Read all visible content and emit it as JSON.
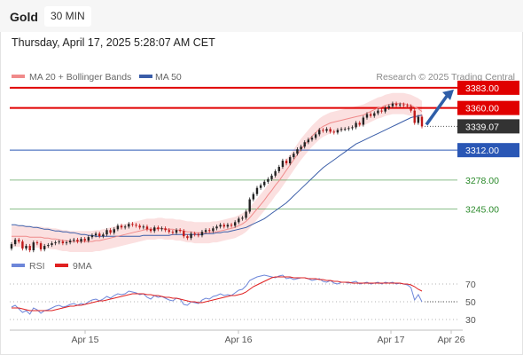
{
  "header": {
    "symbol": "Gold",
    "timeframe": "30 MIN",
    "datetime": "Thursday, April 17, 2025 5:28:07 AM CET"
  },
  "legend": {
    "ma20": "MA 20 + Bollinger Bands",
    "ma50": "MA 50",
    "credit": "Research © 2025 Trading Central",
    "rsi": "RSI",
    "rsi_ma": "9MA"
  },
  "colors": {
    "resistance": "#e00000",
    "pivot": "#2a57b5",
    "support": "#2b8a2b",
    "ma20": "#f08a8a",
    "ma50": "#3a5da8",
    "band_fill": "#fbe0e0",
    "candle_up": "#222222",
    "candle_down": "#c01818",
    "rsi_line": "#6d86d9",
    "rsi_ma": "#e02020",
    "last_price_bg": "#333333"
  },
  "chart_data": [
    {
      "type": "candlestick",
      "title": "Gold",
      "x_tick_labels": [
        "Apr 15",
        "Apr 16",
        "Apr 17",
        "Apr 26"
      ],
      "ylim": [
        3195,
        3395
      ],
      "grid": false,
      "legend_position": "top-left",
      "last_price": {
        "value": 3339.07,
        "label": "3339.07"
      },
      "levels": [
        {
          "value": 3383,
          "label": "3383.00",
          "role": "resistance"
        },
        {
          "value": 3360,
          "label": "3360.00",
          "role": "resistance"
        },
        {
          "value": 3312,
          "label": "3312.00",
          "role": "pivot"
        },
        {
          "value": 3278,
          "label": "3278.00",
          "role": "support"
        },
        {
          "value": 3245,
          "label": "3245.00",
          "role": "support"
        }
      ],
      "arrow": {
        "direction": "up",
        "from": 3339,
        "to": 3383
      },
      "series": [
        {
          "name": "Gold",
          "close": [
            3205,
            3210,
            3208,
            3200,
            3203,
            3198,
            3207,
            3206,
            3199,
            3203,
            3204,
            3206,
            3207,
            3208,
            3206,
            3207,
            3209,
            3210,
            3208,
            3211,
            3209,
            3213,
            3215,
            3217,
            3214,
            3216,
            3221,
            3218,
            3222,
            3226,
            3224,
            3225,
            3228,
            3227,
            3226,
            3224,
            3225,
            3222,
            3220,
            3224,
            3222,
            3223,
            3221,
            3219,
            3218,
            3221,
            3220,
            3214,
            3212,
            3217,
            3216,
            3215,
            3219,
            3221,
            3220,
            3223,
            3225,
            3227,
            3225,
            3227,
            3226,
            3230,
            3234,
            3235,
            3242,
            3256,
            3262,
            3269,
            3272,
            3276,
            3279,
            3283,
            3288,
            3293,
            3300,
            3297,
            3304,
            3308,
            3313,
            3316,
            3321,
            3324,
            3326,
            3330,
            3335,
            3334,
            3336,
            3333,
            3332,
            3335,
            3336,
            3336,
            3337,
            3338,
            3343,
            3341,
            3349,
            3353,
            3351,
            3354,
            3357,
            3356,
            3360,
            3362,
            3365,
            3363,
            3364,
            3363,
            3362,
            3357,
            3343,
            3350,
            3339
          ],
          "open": [
            3200,
            3205,
            3210,
            3208,
            3200,
            3203,
            3198,
            3207,
            3206,
            3199,
            3203,
            3204,
            3206,
            3207,
            3208,
            3206,
            3207,
            3209,
            3210,
            3208,
            3211,
            3209,
            3213,
            3215,
            3217,
            3214,
            3216,
            3221,
            3218,
            3222,
            3226,
            3224,
            3225,
            3228,
            3227,
            3226,
            3224,
            3225,
            3222,
            3220,
            3224,
            3222,
            3223,
            3221,
            3219,
            3218,
            3221,
            3220,
            3214,
            3212,
            3217,
            3216,
            3215,
            3219,
            3221,
            3220,
            3223,
            3225,
            3227,
            3225,
            3227,
            3226,
            3230,
            3234,
            3235,
            3242,
            3256,
            3262,
            3269,
            3272,
            3276,
            3279,
            3283,
            3288,
            3293,
            3300,
            3297,
            3304,
            3308,
            3313,
            3316,
            3321,
            3324,
            3326,
            3330,
            3335,
            3334,
            3336,
            3333,
            3332,
            3335,
            3336,
            3336,
            3337,
            3338,
            3343,
            3341,
            3349,
            3353,
            3351,
            3354,
            3357,
            3356,
            3360,
            3362,
            3365,
            3363,
            3364,
            3363,
            3362,
            3357,
            3343,
            3350
          ]
        },
        {
          "name": "MA 20",
          "values": [
            3214,
            3214,
            3214,
            3214,
            3214,
            3213,
            3213,
            3213,
            3213,
            3212,
            3212,
            3211,
            3211,
            3210,
            3209,
            3209,
            3208,
            3208,
            3208,
            3208,
            3208,
            3208,
            3208,
            3209,
            3209,
            3210,
            3211,
            3212,
            3213,
            3214,
            3215,
            3216,
            3217,
            3218,
            3219,
            3220,
            3221,
            3222,
            3222,
            3222,
            3223,
            3223,
            3222,
            3222,
            3222,
            3221,
            3221,
            3220,
            3219,
            3219,
            3218,
            3218,
            3218,
            3218,
            3218,
            3219,
            3219,
            3220,
            3221,
            3222,
            3223,
            3224,
            3226,
            3228,
            3231,
            3235,
            3240,
            3245,
            3250,
            3255,
            3261,
            3266,
            3272,
            3277,
            3283,
            3289,
            3295,
            3301,
            3307,
            3313,
            3318,
            3323,
            3328,
            3332,
            3336,
            3339,
            3341,
            3343,
            3344,
            3345,
            3346,
            3347,
            3348,
            3349,
            3350,
            3351,
            3352,
            3354,
            3356,
            3358,
            3360,
            3361,
            3363,
            3364,
            3365,
            3365,
            3365,
            3365,
            3364,
            3363,
            3361,
            3359,
            3356
          ]
        },
        {
          "name": "MA 50",
          "values": [
            3227,
            3227,
            3226,
            3226,
            3225,
            3225,
            3224,
            3224,
            3223,
            3222,
            3222,
            3221,
            3220,
            3220,
            3219,
            3219,
            3218,
            3218,
            3217,
            3216,
            3216,
            3215,
            3215,
            3214,
            3214,
            3214,
            3214,
            3214,
            3214,
            3214,
            3214,
            3214,
            3214,
            3214,
            3214,
            3214,
            3215,
            3215,
            3215,
            3215,
            3215,
            3215,
            3215,
            3215,
            3216,
            3216,
            3216,
            3216,
            3216,
            3216,
            3216,
            3216,
            3216,
            3217,
            3217,
            3217,
            3218,
            3218,
            3219,
            3219,
            3220,
            3221,
            3222,
            3223,
            3224,
            3226,
            3228,
            3230,
            3232,
            3234,
            3237,
            3240,
            3243,
            3246,
            3249,
            3252,
            3256,
            3260,
            3264,
            3268,
            3272,
            3276,
            3280,
            3284,
            3288,
            3292,
            3295,
            3298,
            3301,
            3304,
            3307,
            3310,
            3313,
            3316,
            3319,
            3321,
            3323,
            3325,
            3327,
            3329,
            3331,
            3333,
            3335,
            3337,
            3339,
            3341,
            3343,
            3345,
            3347,
            3349,
            3350,
            3351,
            3352
          ]
        }
      ]
    },
    {
      "type": "line",
      "title": "",
      "ylim": [
        20,
        80
      ],
      "y_ticks": [
        30,
        50,
        70
      ],
      "series": [
        {
          "name": "RSI",
          "values": [
            44,
            46,
            42,
            38,
            40,
            36,
            43,
            41,
            37,
            40,
            41,
            43,
            45,
            46,
            44,
            45,
            47,
            48,
            46,
            48,
            47,
            50,
            52,
            53,
            51,
            53,
            56,
            54,
            57,
            59,
            58,
            59,
            62,
            61,
            60,
            58,
            59,
            55,
            53,
            57,
            55,
            56,
            54,
            52,
            51,
            54,
            53,
            47,
            46,
            50,
            49,
            48,
            52,
            54,
            53,
            56,
            57,
            59,
            57,
            58,
            57,
            60,
            63,
            64,
            68,
            74,
            76,
            78,
            79,
            80,
            79,
            78,
            77,
            79,
            80,
            76,
            77,
            75,
            76,
            77,
            77,
            76,
            74,
            75,
            76,
            73,
            72,
            74,
            71,
            70,
            72,
            72,
            71,
            72,
            73,
            70,
            71,
            72,
            70,
            71,
            72,
            70,
            72,
            71,
            72,
            70,
            71,
            70,
            69,
            66,
            52,
            58,
            50
          ]
        },
        {
          "name": "9MA",
          "values": [
            43,
            43,
            43,
            42,
            41,
            40,
            40,
            40,
            40,
            40,
            40,
            40,
            41,
            42,
            43,
            44,
            45,
            45,
            46,
            46,
            47,
            48,
            49,
            50,
            51,
            51,
            52,
            53,
            54,
            55,
            56,
            57,
            58,
            59,
            59,
            59,
            59,
            58,
            58,
            57,
            57,
            56,
            55,
            55,
            54,
            54,
            53,
            52,
            51,
            50,
            50,
            49,
            49,
            50,
            51,
            52,
            53,
            54,
            55,
            56,
            57,
            57,
            58,
            59,
            61,
            64,
            67,
            69,
            71,
            73,
            75,
            77,
            78,
            78,
            78,
            78,
            78,
            77,
            77,
            77,
            77,
            76,
            76,
            76,
            75,
            75,
            74,
            74,
            73,
            73,
            72,
            72,
            72,
            71,
            71,
            71,
            71,
            71,
            71,
            71,
            71,
            71,
            71,
            71,
            71,
            71,
            71,
            70,
            70,
            69,
            67,
            64,
            62
          ]
        }
      ]
    }
  ]
}
